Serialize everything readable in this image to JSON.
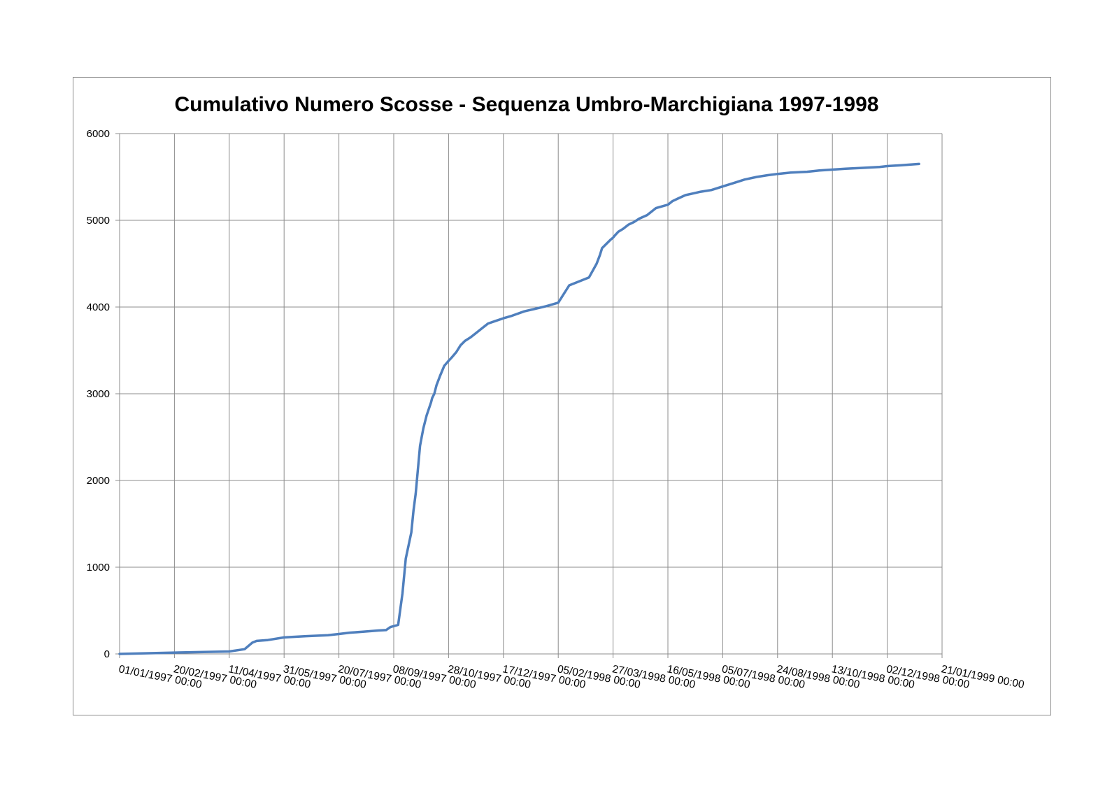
{
  "chart_data": {
    "type": "line",
    "title": "Cumulativo Numero Scosse - Sequenza Umbro-Marchigiana 1997-1998",
    "xlabel": "",
    "ylabel": "",
    "x_axis_type": "date",
    "xlim": [
      "01/01/1997",
      "21/01/1999"
    ],
    "ylim": [
      0,
      6000
    ],
    "grid": true,
    "legend": "none",
    "line_color": "#4f7fbd",
    "y_ticks": [
      "0",
      "1000",
      "2000",
      "3000",
      "4000",
      "5000",
      "6000"
    ],
    "x_ticks": [
      "01/01/1997 00:00",
      "20/02/1997 00:00",
      "11/04/1997 00:00",
      "31/05/1997 00:00",
      "20/07/1997 00:00",
      "08/09/1997 00:00",
      "28/10/1997 00:00",
      "17/12/1997 00:00",
      "05/02/1998 00:00",
      "27/03/1998 00:00",
      "16/05/1998 00:00",
      "05/07/1998 00:00",
      "24/08/1998 00:00",
      "13/10/1998 00:00",
      "02/12/1998 00:00",
      "21/01/1999 00:00"
    ],
    "series": [
      {
        "x": [
          "01/01/1997",
          "20/02/1997",
          "11/04/1997",
          "25/04/1997",
          "02/05/1997",
          "06/05/1997",
          "16/05/1997",
          "31/05/1997",
          "20/06/1997",
          "10/07/1997",
          "20/07/1997",
          "30/07/1997",
          "10/08/1997",
          "25/08/1997",
          "01/09/1997",
          "05/09/1997",
          "12/09/1997",
          "16/09/1997",
          "19/09/1997",
          "24/09/1997",
          "26/09/1997",
          "28/09/1997",
          "02/10/1997",
          "05/10/1997",
          "08/10/1997",
          "12/10/1997",
          "13/10/1997",
          "15/10/1997",
          "17/10/1997",
          "20/10/1997",
          "24/10/1997",
          "28/10/1997",
          "31/10/1997",
          "04/11/1997",
          "08/11/1997",
          "12/11/1997",
          "17/11/1997",
          "22/11/1997",
          "28/11/1997",
          "03/12/1997",
          "10/12/1997",
          "17/12/1997",
          "25/12/1997",
          "05/01/1998",
          "15/01/1998",
          "25/01/1998",
          "05/02/1998",
          "15/02/1998",
          "25/02/1998",
          "05/03/1998",
          "12/03/1998",
          "15/03/1998",
          "17/03/1998",
          "25/03/1998",
          "27/03/1998",
          "29/03/1998",
          "01/04/1998",
          "05/04/1998",
          "10/04/1998",
          "15/04/1998",
          "20/04/1998",
          "27/04/1998",
          "05/05/1998",
          "16/05/1998",
          "20/05/1998",
          "25/05/1998",
          "01/06/1998",
          "08/06/1998",
          "15/06/1998",
          "25/06/1998",
          "05/07/1998",
          "15/07/1998",
          "25/07/1998",
          "05/08/1998",
          "15/08/1998",
          "24/08/1998",
          "05/09/1998",
          "20/09/1998",
          "01/10/1998",
          "13/10/1998",
          "25/10/1998",
          "10/11/1998",
          "25/11/1998",
          "02/12/1998",
          "15/12/1998",
          "31/12/1998"
        ],
        "values": [
          0,
          15,
          28,
          55,
          130,
          150,
          160,
          190,
          205,
          215,
          230,
          245,
          255,
          270,
          275,
          310,
          335,
          700,
          1100,
          1400,
          1650,
          1850,
          2400,
          2600,
          2750,
          2900,
          2950,
          3000,
          3100,
          3200,
          3320,
          3380,
          3420,
          3480,
          3560,
          3610,
          3650,
          3700,
          3760,
          3810,
          3840,
          3870,
          3900,
          3950,
          3980,
          4010,
          4050,
          4250,
          4300,
          4340,
          4500,
          4600,
          4680,
          4780,
          4800,
          4830,
          4870,
          4900,
          4950,
          4980,
          5020,
          5060,
          5140,
          5180,
          5220,
          5250,
          5290,
          5310,
          5330,
          5350,
          5390,
          5430,
          5470,
          5500,
          5520,
          5535,
          5550,
          5560,
          5575,
          5585,
          5595,
          5605,
          5615,
          5625,
          5635,
          5650
        ]
      }
    ]
  }
}
